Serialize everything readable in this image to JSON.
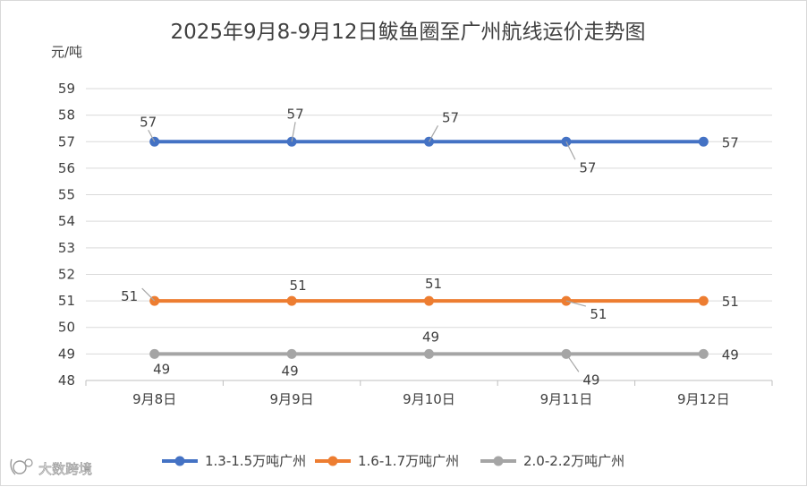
{
  "chart_data": {
    "type": "line",
    "title": "2025年9月8-9月12日鲅鱼圈至广州航线运价走势图",
    "ylabel": "元/吨",
    "xlabel": "",
    "categories": [
      "9月8日",
      "9月9日",
      "9月10日",
      "9月11日",
      "9月12日"
    ],
    "ylim": [
      48,
      59
    ],
    "yticks": [
      48,
      49,
      50,
      51,
      52,
      53,
      54,
      55,
      56,
      57,
      58,
      59
    ],
    "grid": true,
    "legend_position": "bottom",
    "series": [
      {
        "name": "1.3-1.5万吨广州",
        "color": "#4472c4",
        "values": [
          57,
          57,
          57,
          57,
          57
        ]
      },
      {
        "name": "1.6-1.7万吨广州",
        "color": "#ed7d31",
        "values": [
          51,
          51,
          51,
          51,
          51
        ]
      },
      {
        "name": "2.0-2.2万吨广州",
        "color": "#a5a5a5",
        "values": [
          49,
          49,
          49,
          49,
          49
        ]
      }
    ]
  },
  "watermark": {
    "text": "大数跨境",
    "icon": "dashuju-logo-icon"
  },
  "colors": {
    "grid": "#d9d9d9",
    "axis": "#bfbfbf",
    "text": "#404040",
    "leader": "#a6a6a6"
  }
}
